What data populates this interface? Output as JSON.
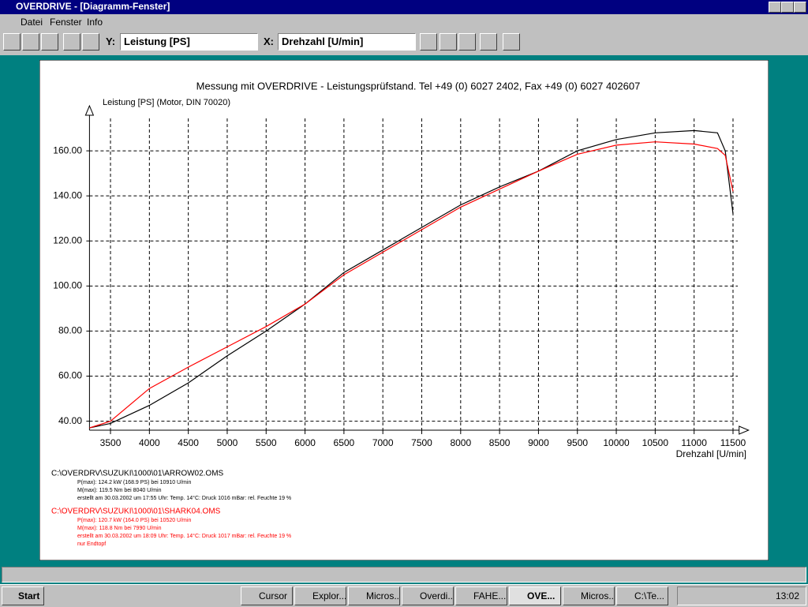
{
  "window": {
    "title": "OVERDRIVE - [Diagramm-Fenster]",
    "menu": [
      "Datei",
      "Fenster",
      "Info"
    ],
    "toolbar": {
      "y_label": "Y:",
      "y_value": "Leistung [PS]",
      "x_label": "X:",
      "x_value": "Drehzahl [U/min]"
    }
  },
  "chart_data": {
    "type": "line",
    "title": "Messung mit OVERDRIVE - Leistungsprüfstand. Tel +49 (0) 6027 2402, Fax +49 (0) 6027 402607",
    "y_label": "Leistung [PS] (Motor, DIN 70020)",
    "x_label": "Drehzahl [U/min]",
    "x": [
      3230,
      3500,
      4000,
      4500,
      5000,
      5500,
      6000,
      6500,
      7000,
      7500,
      8000,
      8500,
      9000,
      9500,
      10000,
      10500,
      11000,
      11300,
      11400,
      11500
    ],
    "series": [
      {
        "name": "C:\\OVERDRV\\SUZUKI\\1000\\01\\ARROW02.OMS",
        "color": "#000000",
        "values": [
          37,
          39,
          47,
          57,
          69,
          80,
          92,
          106,
          116,
          126,
          136,
          144,
          151,
          160,
          165,
          168,
          169,
          168,
          160,
          132
        ],
        "details": [
          "P(max): 124.2 kW (168.9 PS) bei 10910 U/min",
          "M(max): 119.5 Nm bei 8040 U/min",
          "erstellt am 30.03.2002 um 17:55 Uhr: Temp. 14°C: Druck 1016 mBar: rel. Feuchte 19 %"
        ]
      },
      {
        "name": "C:\\OVERDRV\\SUZUKI\\1000\\01\\SHARK04.OMS",
        "color": "#ff0000",
        "values": [
          37,
          40,
          54.5,
          64,
          73,
          82,
          92,
          105,
          115,
          125,
          135,
          143,
          151,
          158.5,
          162.5,
          164,
          163,
          161,
          158,
          142
        ],
        "details": [
          "P(max): 120.7 kW (164.0 PS) bei 10520 U/min",
          "M(max): 118.8 Nm bei 7990 U/min",
          "erstellt am 30.03.2002 um 18:09 Uhr: Temp. 14°C: Druck 1017 mBar: rel. Feuchte 19 %",
          "nur Endtopf"
        ]
      }
    ],
    "xlim": [
      3230,
      11700
    ],
    "ylim": [
      36,
      180
    ],
    "xticks": [
      3500,
      4000,
      4500,
      5000,
      5500,
      6000,
      6500,
      7000,
      7500,
      8000,
      8500,
      9000,
      9500,
      10000,
      10500,
      11000,
      11500
    ],
    "yticks": [
      {
        "value": 40,
        "label": "40.00"
      },
      {
        "value": 60,
        "label": "60.00"
      },
      {
        "value": 80,
        "label": "80.00"
      },
      {
        "value": 100,
        "label": "100.00"
      },
      {
        "value": 120,
        "label": "120.00"
      },
      {
        "value": 140,
        "label": "140.00"
      },
      {
        "value": 160,
        "label": "160.00"
      }
    ],
    "grid": true
  },
  "taskbar": {
    "start": "Start",
    "tasks": [
      "Cursor",
      "Explor...",
      "Micros...",
      "Overdi...",
      "FAHE...",
      "OVE...",
      "Micros...",
      "C:\\Te..."
    ],
    "clock": "13:02"
  }
}
